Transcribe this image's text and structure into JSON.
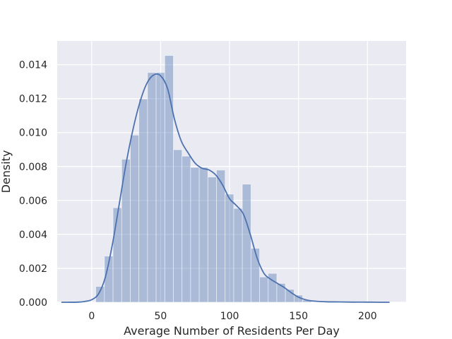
{
  "chart_data": {
    "type": "bar",
    "subtype": "histogram-with-kde",
    "title": "",
    "xlabel": "Average Number of Residents Per Day",
    "ylabel": "Density",
    "xlim": [
      -25,
      228
    ],
    "ylim": [
      0,
      0.0154
    ],
    "grid": true,
    "legend": "none",
    "colors": {
      "background": "#eaeaf2",
      "grid": "#ffffff",
      "bar": "#4c72b0",
      "kde": "#4c72b0"
    },
    "xticks": [
      "0",
      "50",
      "100",
      "150",
      "200"
    ],
    "yticks": [
      "0.000",
      "0.002",
      "0.004",
      "0.006",
      "0.008",
      "0.010",
      "0.012",
      "0.014"
    ],
    "histogram": {
      "bin_width": 6.25,
      "bins": [
        {
          "x0": 3.0,
          "density": 0.00093
        },
        {
          "x0": 9.25,
          "density": 0.00272
        },
        {
          "x0": 15.5,
          "density": 0.00557
        },
        {
          "x0": 21.75,
          "density": 0.00843
        },
        {
          "x0": 28.0,
          "density": 0.00985
        },
        {
          "x0": 34.25,
          "density": 0.01198
        },
        {
          "x0": 40.5,
          "density": 0.01354
        },
        {
          "x0": 46.75,
          "density": 0.01354
        },
        {
          "x0": 53.0,
          "density": 0.01454
        },
        {
          "x0": 59.25,
          "density": 0.00899
        },
        {
          "x0": 65.5,
          "density": 0.00861
        },
        {
          "x0": 71.75,
          "density": 0.00795
        },
        {
          "x0": 78.0,
          "density": 0.00795
        },
        {
          "x0": 84.25,
          "density": 0.00738
        },
        {
          "x0": 90.5,
          "density": 0.00779
        },
        {
          "x0": 96.75,
          "density": 0.00637
        },
        {
          "x0": 103.0,
          "density": 0.00553
        },
        {
          "x0": 109.25,
          "density": 0.00696
        },
        {
          "x0": 115.5,
          "density": 0.00318
        },
        {
          "x0": 121.75,
          "density": 0.00149
        },
        {
          "x0": 128.0,
          "density": 0.0017
        },
        {
          "x0": 134.25,
          "density": 0.00111
        },
        {
          "x0": 140.5,
          "density": 0.00076
        },
        {
          "x0": 146.75,
          "density": 0.00042
        },
        {
          "x0": 153.0,
          "density": 0.00013
        }
      ]
    },
    "kde": {
      "x": [
        -22,
        -10,
        -5,
        0,
        5,
        10,
        15,
        20,
        25,
        30,
        35,
        40,
        45,
        50,
        55,
        60,
        65,
        70,
        75,
        80,
        85,
        90,
        95,
        100,
        105,
        110,
        115,
        120,
        125,
        130,
        135,
        140,
        145,
        150,
        155,
        160,
        170,
        180,
        190,
        200,
        210,
        216
      ],
      "y": [
        0.0,
        1e-05,
        5e-05,
        0.00015,
        0.0005,
        0.0015,
        0.0034,
        0.0058,
        0.0082,
        0.0102,
        0.0118,
        0.0129,
        0.0134,
        0.01335,
        0.0126,
        0.0108,
        0.0095,
        0.0088,
        0.0082,
        0.0079,
        0.0078,
        0.0075,
        0.0069,
        0.0061,
        0.0057,
        0.0052,
        0.004,
        0.0026,
        0.0017,
        0.00135,
        0.0011,
        0.00085,
        0.00055,
        0.0003,
        0.00015,
        8e-05,
        3e-05,
        2e-05,
        1e-05,
        1e-05,
        0.0,
        0.0
      ]
    }
  }
}
